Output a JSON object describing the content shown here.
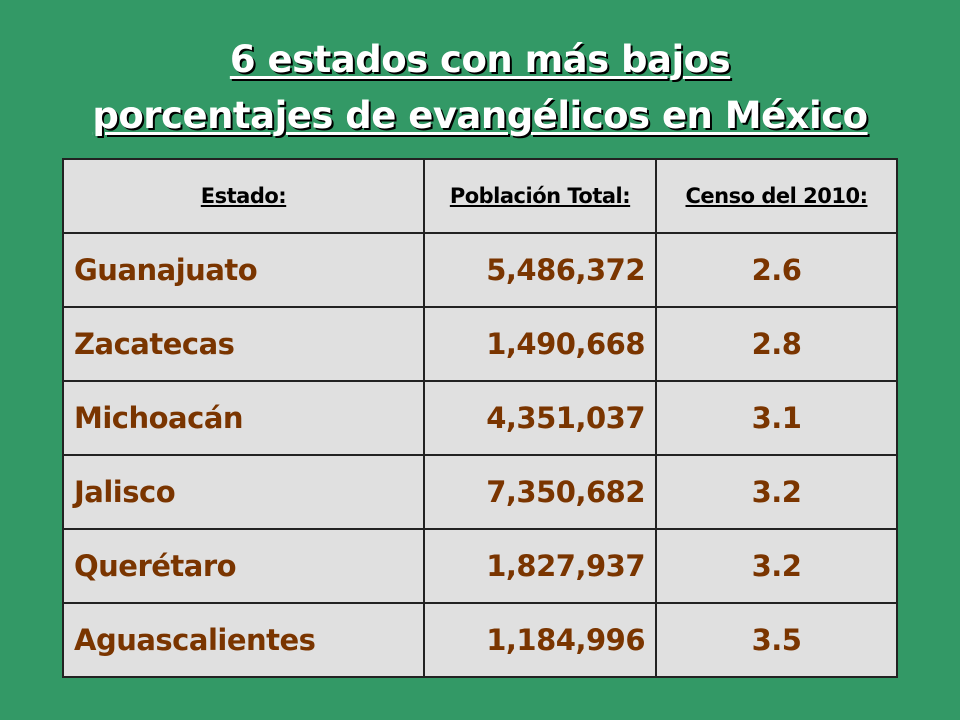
{
  "title": {
    "line1": "6 estados con más bajos",
    "line2": "porcentajes de evangélicos en México"
  },
  "table": {
    "headers": [
      "Estado:",
      "Población Total:",
      "Censo del 2010:"
    ],
    "rows": [
      [
        "Guanajuato",
        "5,486,372",
        "2.6"
      ],
      [
        "Zacatecas",
        "1,490,668",
        "2.8"
      ],
      [
        "Michoacán",
        "4,351,037",
        "3.1"
      ],
      [
        "Jalisco",
        "7,350,682",
        "3.2"
      ],
      [
        "Querétaro",
        "1,827,937",
        "3.2"
      ],
      [
        "Aguascalientes",
        "1,184,996",
        "3.5"
      ]
    ]
  },
  "colors": {
    "background": "#339966",
    "cell_background": "#e0e0e0",
    "cell_text": "#7a3500",
    "header_text": "#000000",
    "title_text": "#ffffff"
  }
}
